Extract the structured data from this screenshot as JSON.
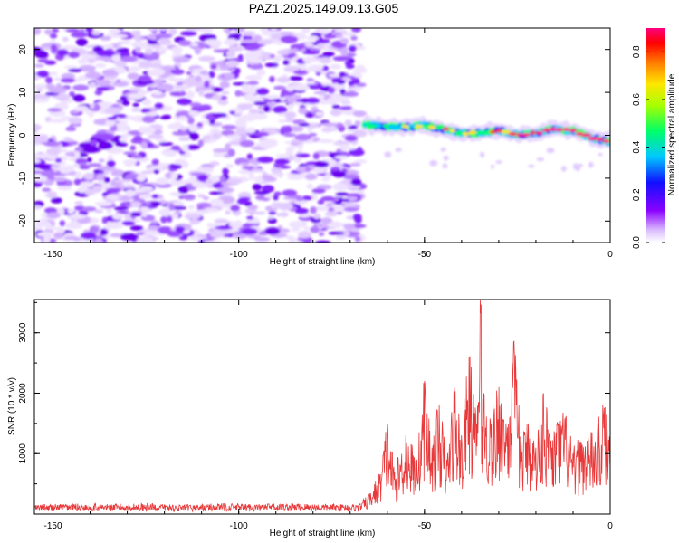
{
  "title": "PAZ1.2025.149.09.13.G05",
  "chart_data": [
    {
      "type": "heatmap",
      "xlabel": "Height of straight line (km)",
      "ylabel": "Frequency (Hz)",
      "xlim": [
        -155,
        0
      ],
      "ylim": [
        -25,
        25
      ],
      "x_ticks": [
        -150,
        -100,
        -50,
        0
      ],
      "y_ticks": [
        -20,
        -10,
        0,
        10,
        20
      ],
      "noise_region_x": [
        -155,
        -67
      ],
      "signal_track": [
        {
          "x": -66,
          "y": 2.5
        },
        {
          "x": -60,
          "y": 2
        },
        {
          "x": -55,
          "y": 2
        },
        {
          "x": -50,
          "y": 2.3
        },
        {
          "x": -45,
          "y": 1.5
        },
        {
          "x": -40,
          "y": 0.5
        },
        {
          "x": -35,
          "y": 0.5
        },
        {
          "x": -30,
          "y": 1.2
        },
        {
          "x": -25,
          "y": 0
        },
        {
          "x": -20,
          "y": 0.5
        },
        {
          "x": -15,
          "y": 1.5
        },
        {
          "x": -10,
          "y": 1
        },
        {
          "x": -5,
          "y": -0.5
        },
        {
          "x": 0,
          "y": -1.5
        }
      ],
      "colorbar": {
        "label": "Normalized spectral amplitude",
        "range": [
          0,
          0.9
        ],
        "ticks": [
          "0.0",
          "0.2",
          "0.4",
          "0.6",
          "0.8"
        ],
        "colormap": "rainbow (white-violet-blue-cyan-green-yellow-red-magenta)"
      }
    },
    {
      "type": "line",
      "xlabel": "Height of straight line (km)",
      "ylabel": "SNR (10 * v/v)",
      "xlim": [
        -155,
        0
      ],
      "ylim": [
        0,
        3550
      ],
      "x_ticks": [
        -150,
        -100,
        -50,
        0
      ],
      "y_ticks": [
        1000,
        2000,
        3000
      ],
      "color": "#e8393a",
      "series": [
        {
          "x": [
            -155,
            -145,
            -135,
            -125,
            -115,
            -105,
            -95,
            -85,
            -75,
            -68,
            -65,
            -62,
            -60,
            -58,
            -55,
            -52,
            -50,
            -48,
            -46,
            -44,
            -42,
            -40,
            -38,
            -36,
            -35,
            -34,
            -32,
            -30,
            -28,
            -26,
            -24,
            -22,
            -20,
            -18,
            -16,
            -14,
            -12,
            -10,
            -8,
            -6,
            -4,
            -2,
            0
          ],
          "values": [
            130,
            150,
            140,
            150,
            130,
            150,
            140,
            150,
            140,
            140,
            300,
            650,
            1500,
            700,
            1300,
            900,
            2200,
            1100,
            1800,
            900,
            2100,
            1300,
            2600,
            1500,
            3550,
            2000,
            1500,
            2100,
            1500,
            2850,
            1200,
            1500,
            1100,
            2000,
            1200,
            1500,
            1600,
            1000,
            1200,
            1300,
            1200,
            1800,
            1300
          ]
        }
      ]
    }
  ]
}
